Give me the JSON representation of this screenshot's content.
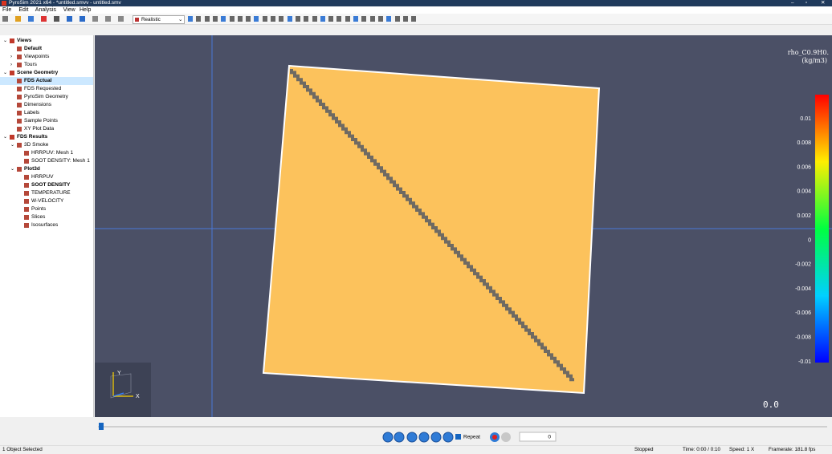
{
  "window": {
    "title": "PyroSim 2021 x64 - *untitled.smvv - untitled.smv"
  },
  "menu": [
    "File",
    "Edit",
    "Analysis",
    "View",
    "Help"
  ],
  "toolbar": {
    "render_mode": "Realistic"
  },
  "tree": [
    {
      "label": "Views",
      "bold": true,
      "expanded": true,
      "children": [
        {
          "label": "Default",
          "bold": true
        },
        {
          "label": "Viewpoints",
          "expanded": false
        },
        {
          "label": "Tours",
          "expanded": false
        }
      ]
    },
    {
      "label": "Scene Geometry",
      "bold": true,
      "expanded": true,
      "children": [
        {
          "label": "FDS Actual",
          "bold": true,
          "selected": true
        },
        {
          "label": "FDS Requested"
        },
        {
          "label": "PyroSim Geometry"
        },
        {
          "label": "Dimensions"
        },
        {
          "label": "Labels"
        },
        {
          "label": "Sample Points"
        },
        {
          "label": "XY Plot Data"
        }
      ]
    },
    {
      "label": "FDS Results",
      "bold": true,
      "expanded": true,
      "children": [
        {
          "label": "3D Smoke",
          "expanded": true,
          "children": [
            {
              "label": "HRRPUV: Mesh 1"
            },
            {
              "label": "SOOT DENSITY: Mesh 1"
            }
          ]
        },
        {
          "label": "Plot3d",
          "bold": true,
          "expanded": true,
          "children": [
            {
              "label": "HRRPUV"
            },
            {
              "label": "SOOT DENSITY",
              "bold": true
            },
            {
              "label": "TEMPERATURE"
            },
            {
              "label": "W-VELOCITY"
            },
            {
              "label": "Points"
            },
            {
              "label": "Slices"
            },
            {
              "label": "Isosurfaces"
            }
          ]
        }
      ]
    }
  ],
  "viewport": {
    "colorbar": {
      "title": "rho_C0.9H0.",
      "unit": "(kg/m3)",
      "labels": [
        "0.01",
        "0.008",
        "0.006",
        "0.004",
        "0.002",
        "0",
        "-0.002",
        "-0.004",
        "-0.006",
        "-0.008",
        "-0.01"
      ]
    },
    "time_display": "0.0",
    "axes": {
      "x": "X",
      "y": "Y"
    }
  },
  "playback": {
    "repeat": "Repeat",
    "frame": "0"
  },
  "status": {
    "selection": "1 Object Selected",
    "state": "Stopped",
    "time": "Time: 0:00 / 0:10",
    "speed": "Speed: 1 X",
    "framerate": "Framerate: 181.8 fps"
  }
}
